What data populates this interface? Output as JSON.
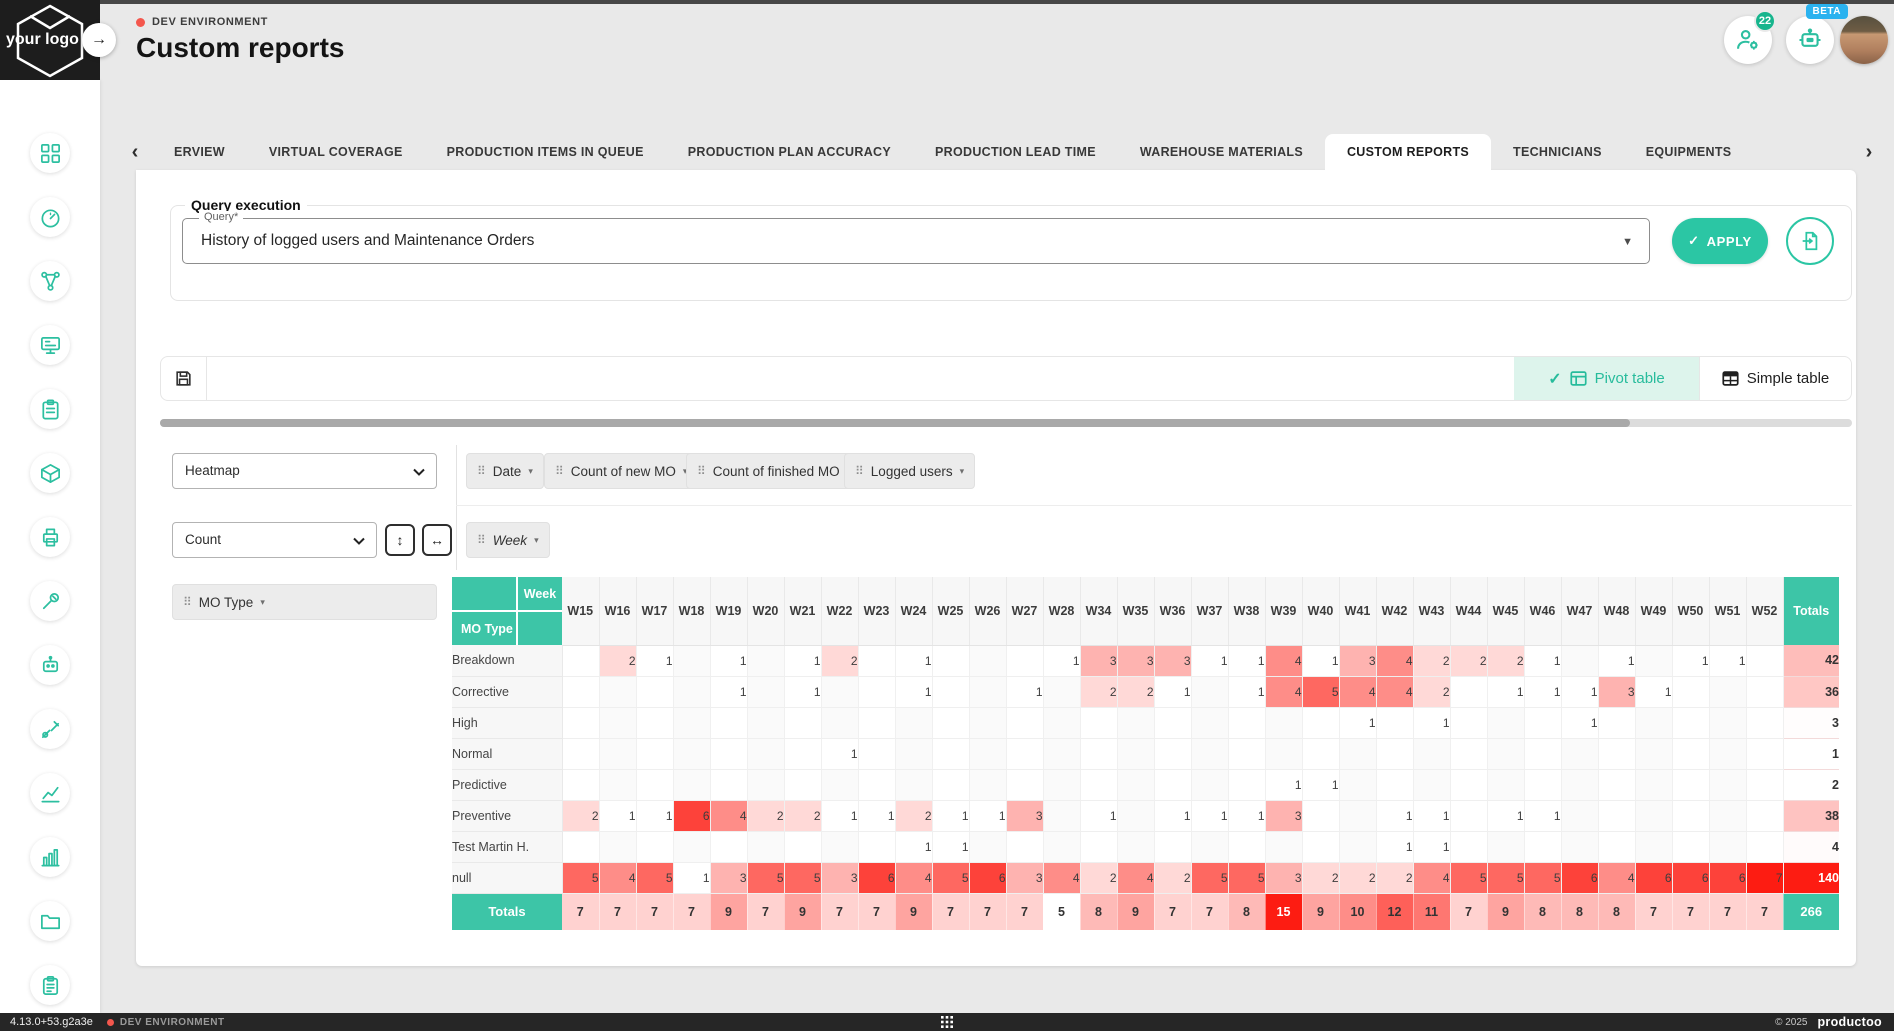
{
  "header": {
    "logo_text": "your logo",
    "env_badge": "DEV ENVIRONMENT",
    "page_title": "Custom reports",
    "user_badge_count": "22",
    "beta_badge": "BETA",
    "collapse_arrow": "→"
  },
  "sidebar": {
    "icons": [
      "dashboard",
      "gauge",
      "workflow",
      "machines",
      "checklist",
      "materials",
      "printer",
      "maintenance",
      "robot",
      "tools",
      "chart-line",
      "chart-bar",
      "folder",
      "documents"
    ]
  },
  "tabs": {
    "items": [
      "ERVIEW",
      "VIRTUAL COVERAGE",
      "PRODUCTION ITEMS IN QUEUE",
      "PRODUCTION PLAN ACCURACY",
      "PRODUCTION LEAD TIME",
      "WAREHOUSE MATERIALS",
      "CUSTOM REPORTS",
      "TECHNICIANS",
      "EQUIPMENTS"
    ],
    "active_index": 6,
    "chevron_left": "‹",
    "chevron_right": "›"
  },
  "query": {
    "legend": "Query execution",
    "label": "Query*",
    "value": "History of logged users and Maintenance Orders",
    "apply_label": "APPLY",
    "apply_check": "✓",
    "caret": "▼"
  },
  "toolbar": {
    "pivot_check": "✓",
    "pivot_label": "Pivot table",
    "simple_label": "Simple table"
  },
  "pivot_controls": {
    "chart_type": "Heatmap",
    "aggregator": "Count",
    "fields": [
      "Date",
      "Count of new MO",
      "Count of finished MO",
      "Logged users"
    ],
    "col_field": "Week",
    "row_field": "MO Type",
    "swap_vertical": "↕",
    "swap_horizontal": "↔",
    "grip": "⠿",
    "caret": "▾"
  },
  "chart_data": {
    "type": "heatmap",
    "col_header": "Week",
    "row_header": "MO Type",
    "totals_label": "Totals",
    "columns": [
      "W15",
      "W16",
      "W17",
      "W18",
      "W19",
      "W20",
      "W21",
      "W22",
      "W23",
      "W24",
      "W25",
      "W26",
      "W27",
      "W28",
      "W34",
      "W35",
      "W36",
      "W37",
      "W38",
      "W39",
      "W40",
      "W41",
      "W42",
      "W43",
      "W44",
      "W45",
      "W46",
      "W47",
      "W48",
      "W49",
      "W50",
      "W51",
      "W52"
    ],
    "rows": [
      {
        "label": "Breakdown",
        "values": [
          null,
          2,
          1,
          null,
          1,
          null,
          1,
          2,
          null,
          1,
          null,
          null,
          null,
          1,
          3,
          3,
          3,
          1,
          1,
          4,
          1,
          3,
          4,
          2,
          2,
          2,
          1,
          null,
          1,
          null,
          1,
          1,
          null
        ],
        "total": 42
      },
      {
        "label": "Corrective",
        "values": [
          null,
          null,
          null,
          null,
          1,
          null,
          1,
          null,
          null,
          1,
          null,
          null,
          1,
          null,
          2,
          2,
          1,
          null,
          1,
          4,
          5,
          4,
          4,
          2,
          null,
          1,
          1,
          1,
          3,
          1,
          null,
          null,
          null
        ],
        "total": 36
      },
      {
        "label": "High",
        "values": [
          null,
          null,
          null,
          null,
          null,
          null,
          null,
          null,
          null,
          null,
          null,
          null,
          null,
          null,
          null,
          null,
          null,
          null,
          null,
          null,
          null,
          1,
          null,
          1,
          null,
          null,
          null,
          1,
          null,
          null,
          null,
          null,
          null
        ],
        "total": 3
      },
      {
        "label": "Normal",
        "values": [
          null,
          null,
          null,
          null,
          null,
          null,
          null,
          1,
          null,
          null,
          null,
          null,
          null,
          null,
          null,
          null,
          null,
          null,
          null,
          null,
          null,
          null,
          null,
          null,
          null,
          null,
          null,
          null,
          null,
          null,
          null,
          null,
          null
        ],
        "total": 1
      },
      {
        "label": "Predictive",
        "values": [
          null,
          null,
          null,
          null,
          null,
          null,
          null,
          null,
          null,
          null,
          null,
          null,
          null,
          null,
          null,
          null,
          null,
          null,
          null,
          1,
          1,
          null,
          null,
          null,
          null,
          null,
          null,
          null,
          null,
          null,
          null,
          null,
          null
        ],
        "total": 2
      },
      {
        "label": "Preventive",
        "values": [
          2,
          1,
          1,
          6,
          4,
          2,
          2,
          1,
          1,
          2,
          1,
          1,
          3,
          null,
          1,
          null,
          1,
          1,
          1,
          3,
          null,
          null,
          1,
          1,
          null,
          1,
          1,
          null,
          null,
          null,
          null,
          null,
          null
        ],
        "total": 38
      },
      {
        "label": "Test Martin H.",
        "values": [
          null,
          null,
          null,
          null,
          null,
          null,
          null,
          null,
          null,
          1,
          1,
          null,
          null,
          null,
          null,
          null,
          null,
          null,
          null,
          null,
          null,
          null,
          1,
          1,
          null,
          null,
          null,
          null,
          null,
          null,
          null,
          null,
          null
        ],
        "total": 4
      },
      {
        "label": "null",
        "values": [
          5,
          4,
          5,
          1,
          3,
          5,
          5,
          3,
          6,
          4,
          5,
          6,
          3,
          4,
          2,
          4,
          2,
          5,
          5,
          3,
          2,
          2,
          2,
          4,
          5,
          5,
          5,
          6,
          4,
          6,
          6,
          6,
          7
        ],
        "total": 140
      }
    ],
    "column_totals": [
      7,
      7,
      7,
      7,
      9,
      7,
      9,
      7,
      7,
      9,
      7,
      7,
      7,
      5,
      8,
      9,
      7,
      7,
      8,
      15,
      9,
      10,
      12,
      11,
      7,
      9,
      8,
      8,
      8,
      7,
      7,
      7,
      7
    ],
    "grand_total": 266,
    "heat_color": "#fd1c12",
    "accent_teal": "#3dc5a7"
  },
  "footer": {
    "version": "4.13.0+53.g2a3e",
    "env": "DEV ENVIRONMENT",
    "copyright": "© 2025",
    "brand": "productoo"
  }
}
